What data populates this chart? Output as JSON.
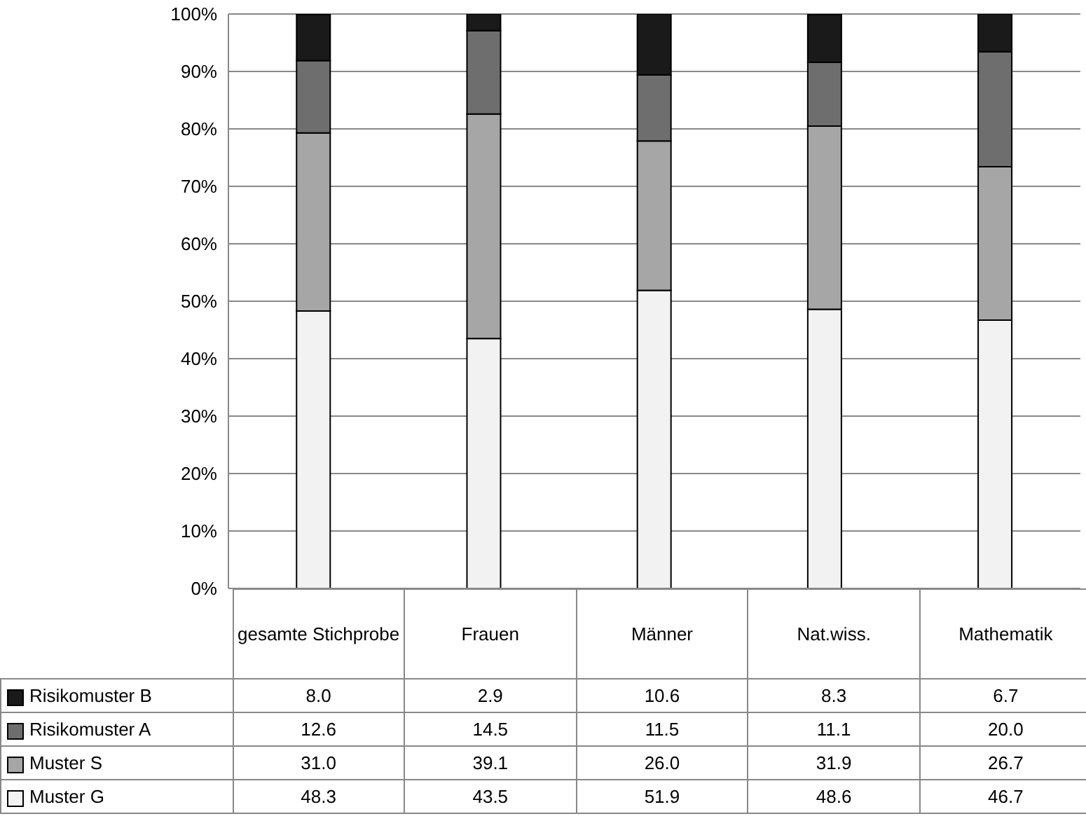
{
  "chart_data": {
    "type": "bar",
    "stacked": true,
    "categories": [
      "gesamte Stichprobe",
      "Frauen",
      "Männer",
      "Nat.wiss.",
      "Mathematik"
    ],
    "series": [
      {
        "name": "Muster G",
        "color": "#f2f2f2",
        "values": [
          48.3,
          43.5,
          51.9,
          48.6,
          46.7
        ],
        "value_labels": [
          "48.3",
          "43.5",
          "51.9",
          "48.6",
          "46.7"
        ]
      },
      {
        "name": "Muster S",
        "color": "#a6a6a6",
        "values": [
          31.0,
          39.1,
          26.0,
          31.9,
          26.7
        ],
        "value_labels": [
          "31.0",
          "39.1",
          "26.0",
          "31.9",
          "26.7"
        ]
      },
      {
        "name": "Risikomuster A",
        "color": "#6e6e6e",
        "values": [
          12.6,
          14.5,
          11.5,
          11.1,
          20.0
        ],
        "value_labels": [
          "12.6",
          "14.5",
          "11.5",
          "11.1",
          "20.0"
        ]
      },
      {
        "name": "Risikomuster B",
        "color": "#1a1a1a",
        "values": [
          8.0,
          2.9,
          10.6,
          8.3,
          6.7
        ],
        "value_labels": [
          "8.0",
          "2.9",
          "10.6",
          "8.3",
          "6.7"
        ]
      }
    ],
    "ylim": [
      0,
      100
    ],
    "yticks": [
      {
        "value": 0,
        "label": "0%"
      },
      {
        "value": 10,
        "label": "10%"
      },
      {
        "value": 20,
        "label": "20%"
      },
      {
        "value": 30,
        "label": "30%"
      },
      {
        "value": 40,
        "label": "40%"
      },
      {
        "value": 50,
        "label": "50%"
      },
      {
        "value": 60,
        "label": "60%"
      },
      {
        "value": 70,
        "label": "70%"
      },
      {
        "value": 80,
        "label": "80%"
      },
      {
        "value": 90,
        "label": "90%"
      },
      {
        "value": 100,
        "label": "100%"
      }
    ],
    "grid": "y",
    "legend": "bottom left"
  }
}
